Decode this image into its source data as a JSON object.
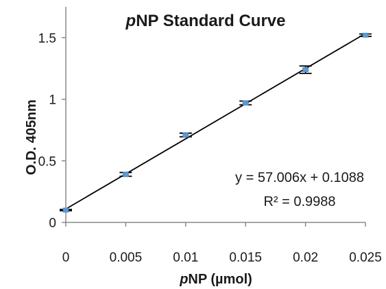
{
  "chart_data": {
    "type": "scatter",
    "title_italic": "p",
    "title_rest": "NP Standard Curve",
    "xlabel_italic": "p",
    "xlabel_rest": "NP (µmol)",
    "ylabel": "O.D. 405nm",
    "xlim": [
      0,
      0.025
    ],
    "ylim": [
      0,
      1.75
    ],
    "x_ticks": [
      "0",
      "0.005",
      "0.01",
      "0.015",
      "0.02",
      "0.025"
    ],
    "y_ticks": [
      "0",
      "0.5",
      "1",
      "1.5"
    ],
    "grid": false,
    "series": [
      {
        "x": [
          0,
          0.005,
          0.01,
          0.015,
          0.02,
          0.025
        ],
        "y": [
          0.1,
          0.39,
          0.71,
          0.97,
          1.24,
          1.52
        ],
        "error": [
          0.005,
          0.015,
          0.015,
          0.015,
          0.03,
          0.01
        ]
      }
    ],
    "trendline": {
      "slope": 57.006,
      "intercept": 0.1088
    },
    "equation": "y = 57.006x + 0.1088",
    "r_squared": "R² = 0.9988",
    "colors": {
      "marker": "#5b9bd5",
      "line": "#000000",
      "axis": "#888888",
      "error": "#000000"
    }
  }
}
